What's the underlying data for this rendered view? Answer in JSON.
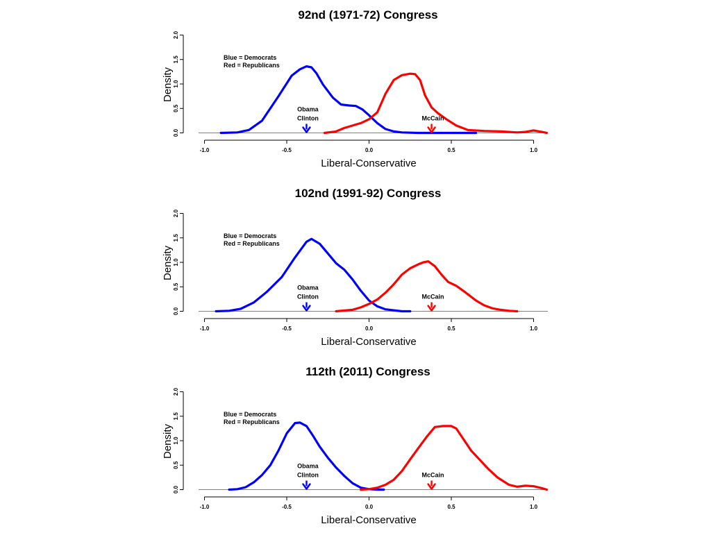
{
  "chart_data": [
    {
      "type": "line",
      "title": "92nd (1971-72) Congress",
      "xlabel": "Liberal-Conservative",
      "ylabel": "Density",
      "xlim": [
        -1.0,
        1.1
      ],
      "ylim": [
        0,
        2.0
      ],
      "x_ticks": [
        "-1.0",
        "-0.5",
        "0.0",
        "0.5",
        "1.0"
      ],
      "y_ticks": [
        "0.0",
        "0.5",
        "1.0",
        "1.5",
        "2.0"
      ],
      "legend_lines": [
        "Blue = Democrats",
        "Red = Republicans"
      ],
      "legend_position": "top-left",
      "series": [
        {
          "name": "Democrats",
          "color": "#0000ff",
          "x": [
            -0.9,
            -0.8,
            -0.73,
            -0.65,
            -0.55,
            -0.47,
            -0.42,
            -0.38,
            -0.35,
            -0.32,
            -0.28,
            -0.22,
            -0.17,
            -0.12,
            -0.08,
            -0.04,
            0.0,
            0.05,
            0.1,
            0.15,
            0.2,
            0.3,
            0.5,
            0.65
          ],
          "y": [
            0.0,
            0.01,
            0.06,
            0.25,
            0.75,
            1.17,
            1.3,
            1.36,
            1.34,
            1.22,
            0.99,
            0.72,
            0.58,
            0.56,
            0.55,
            0.48,
            0.36,
            0.2,
            0.08,
            0.03,
            0.01,
            0.0,
            0.0,
            0.0
          ]
        },
        {
          "name": "Republicans",
          "color": "#ff0000",
          "x": [
            -0.27,
            -0.2,
            -0.15,
            -0.1,
            -0.05,
            0.0,
            0.05,
            0.1,
            0.15,
            0.2,
            0.25,
            0.28,
            0.31,
            0.34,
            0.38,
            0.42,
            0.47,
            0.53,
            0.6,
            0.7,
            0.8,
            0.9,
            0.95,
            1.0,
            1.05,
            1.08
          ],
          "y": [
            0.0,
            0.03,
            0.1,
            0.15,
            0.2,
            0.28,
            0.42,
            0.8,
            1.08,
            1.18,
            1.21,
            1.2,
            1.08,
            0.77,
            0.52,
            0.4,
            0.28,
            0.15,
            0.06,
            0.04,
            0.03,
            0.01,
            0.02,
            0.05,
            0.02,
            0.0
          ]
        }
      ],
      "annotations": [
        {
          "lines": [
            "Obama",
            "Clinton"
          ],
          "x": -0.38,
          "color": "#0000ff"
        },
        {
          "lines": [
            "McCain"
          ],
          "x": 0.38,
          "color": "#ff0000"
        }
      ]
    },
    {
      "type": "line",
      "title": "102nd (1991-92) Congress",
      "xlabel": "Liberal-Conservative",
      "ylabel": "Density",
      "xlim": [
        -1.0,
        1.1
      ],
      "ylim": [
        0,
        2.0
      ],
      "x_ticks": [
        "-1.0",
        "-0.5",
        "0.0",
        "0.5",
        "1.0"
      ],
      "y_ticks": [
        "0.0",
        "0.5",
        "1.0",
        "1.5",
        "2.0"
      ],
      "legend_lines": [
        "Blue = Democrats",
        "Red = Republicans"
      ],
      "legend_position": "top-left",
      "series": [
        {
          "name": "Democrats",
          "color": "#0000ff",
          "x": [
            -0.93,
            -0.85,
            -0.78,
            -0.7,
            -0.62,
            -0.53,
            -0.45,
            -0.38,
            -0.35,
            -0.3,
            -0.25,
            -0.2,
            -0.15,
            -0.1,
            -0.05,
            0.0,
            0.05,
            0.1,
            0.15,
            0.2,
            0.25
          ],
          "y": [
            0.0,
            0.01,
            0.05,
            0.18,
            0.4,
            0.7,
            1.1,
            1.42,
            1.48,
            1.38,
            1.18,
            0.98,
            0.85,
            0.65,
            0.42,
            0.22,
            0.1,
            0.04,
            0.02,
            0.0,
            0.0
          ]
        },
        {
          "name": "Republicans",
          "color": "#ff0000",
          "x": [
            -0.2,
            -0.1,
            -0.05,
            0.0,
            0.05,
            0.1,
            0.15,
            0.2,
            0.25,
            0.3,
            0.33,
            0.36,
            0.4,
            0.44,
            0.48,
            0.53,
            0.58,
            0.65,
            0.7,
            0.75,
            0.8,
            0.85,
            0.9
          ],
          "y": [
            0.0,
            0.03,
            0.08,
            0.15,
            0.24,
            0.38,
            0.55,
            0.75,
            0.88,
            0.96,
            1.0,
            1.02,
            0.92,
            0.75,
            0.6,
            0.52,
            0.4,
            0.22,
            0.12,
            0.06,
            0.03,
            0.01,
            0.0
          ]
        }
      ],
      "annotations": [
        {
          "lines": [
            "Obama",
            "Clinton"
          ],
          "x": -0.38,
          "color": "#0000ff"
        },
        {
          "lines": [
            "McCain"
          ],
          "x": 0.38,
          "color": "#ff0000"
        }
      ]
    },
    {
      "type": "line",
      "title": "112th (2011) Congress",
      "xlabel": "Liberal-Conservative",
      "ylabel": "Density",
      "xlim": [
        -1.0,
        1.1
      ],
      "ylim": [
        0,
        2.0
      ],
      "x_ticks": [
        "-1.0",
        "-0.5",
        "0.0",
        "0.5",
        "1.0"
      ],
      "y_ticks": [
        "0.0",
        "0.5",
        "1.0",
        "1.5",
        "2.0"
      ],
      "legend_lines": [
        "Blue = Democrats",
        "Red = Republicans"
      ],
      "legend_position": "top-left",
      "series": [
        {
          "name": "Democrats",
          "color": "#0000ff",
          "x": [
            -0.85,
            -0.8,
            -0.75,
            -0.7,
            -0.65,
            -0.6,
            -0.55,
            -0.5,
            -0.45,
            -0.42,
            -0.38,
            -0.34,
            -0.3,
            -0.25,
            -0.2,
            -0.15,
            -0.1,
            -0.05,
            0.0,
            0.05,
            0.09
          ],
          "y": [
            0.0,
            0.01,
            0.05,
            0.15,
            0.3,
            0.5,
            0.8,
            1.15,
            1.36,
            1.37,
            1.3,
            1.1,
            0.88,
            0.65,
            0.45,
            0.28,
            0.13,
            0.04,
            0.01,
            0.0,
            0.0
          ]
        },
        {
          "name": "Republicans",
          "color": "#ff0000",
          "x": [
            -0.05,
            0.0,
            0.05,
            0.1,
            0.15,
            0.2,
            0.25,
            0.3,
            0.35,
            0.4,
            0.45,
            0.5,
            0.53,
            0.57,
            0.62,
            0.67,
            0.72,
            0.78,
            0.85,
            0.9,
            0.95,
            1.0,
            1.05,
            1.08
          ],
          "y": [
            0.0,
            0.01,
            0.04,
            0.1,
            0.2,
            0.38,
            0.62,
            0.85,
            1.08,
            1.28,
            1.3,
            1.3,
            1.25,
            1.05,
            0.8,
            0.62,
            0.44,
            0.25,
            0.1,
            0.06,
            0.08,
            0.07,
            0.03,
            0.0
          ]
        }
      ],
      "annotations": [
        {
          "lines": [
            "Obama",
            "Clinton"
          ],
          "x": -0.38,
          "color": "#0000ff"
        },
        {
          "lines": [
            "McCain"
          ],
          "x": 0.38,
          "color": "#ff0000"
        }
      ]
    }
  ]
}
